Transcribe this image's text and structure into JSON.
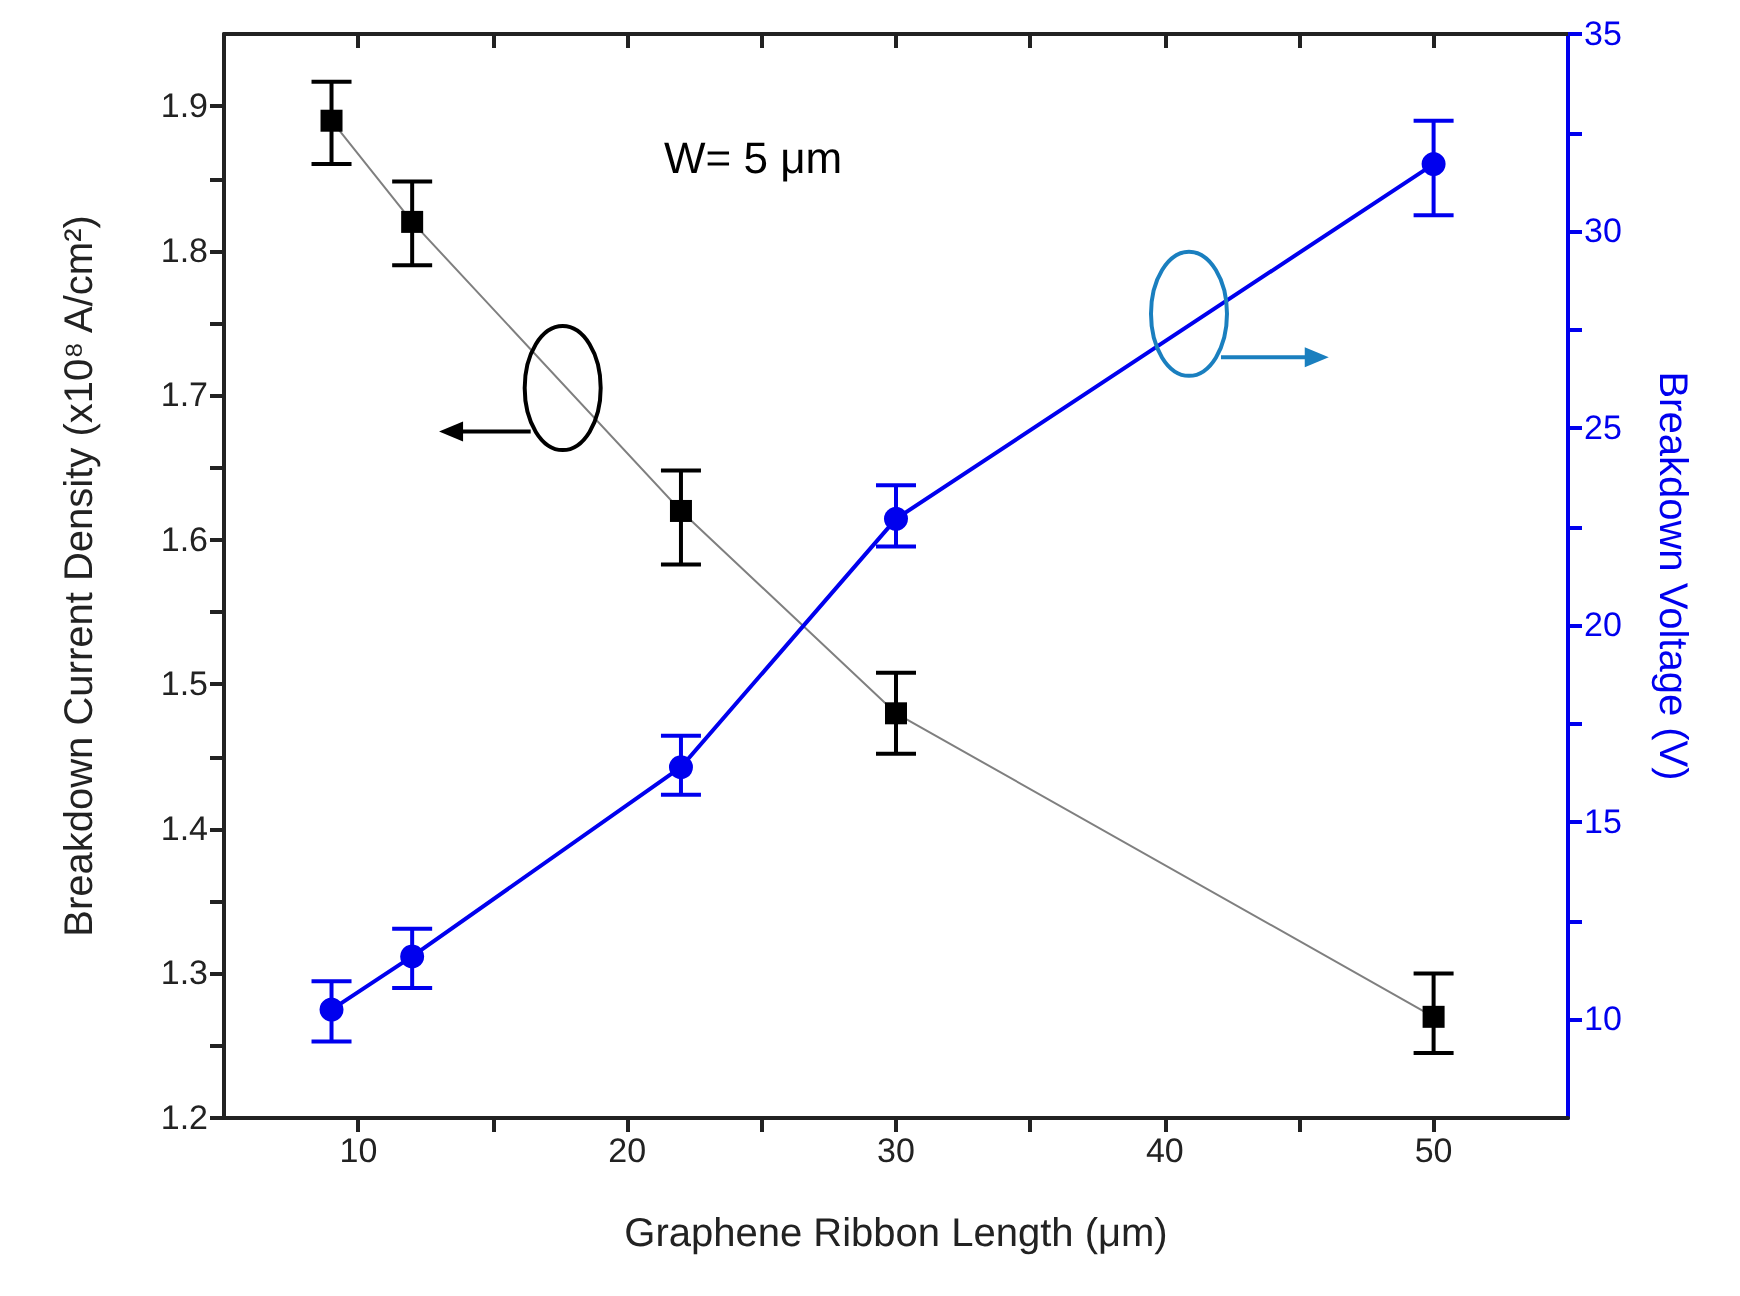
{
  "chart_data": {
    "type": "line",
    "xlabel": "Graphene Ribbon Length (μm)",
    "ylabel": "Breakdown Current Density (x10⁸ A/cm²)",
    "y2label": "Breakdown Voltage (V)",
    "annotations": [
      "W= 5 μm"
    ],
    "x": [
      9,
      12,
      22,
      30,
      50
    ],
    "series": [
      {
        "color": "#000000",
        "marker": "square",
        "values": [
          1.89,
          1.82,
          1.62,
          1.48,
          1.27
        ],
        "errors": [
          [
            1.86,
            1.917
          ],
          [
            1.79,
            1.848
          ],
          [
            1.583,
            1.648
          ],
          [
            1.452,
            1.508
          ],
          [
            1.245,
            1.3
          ]
        ]
      },
      {
        "color": "#0000ee",
        "marker": "circle",
        "axis": "y2",
        "values": [
          10.25,
          11.6,
          16.4,
          22.7,
          31.7
        ],
        "errors": [
          [
            9.44,
            10.97
          ],
          [
            10.8,
            12.3
          ],
          [
            15.7,
            17.2
          ],
          [
            22.0,
            23.55
          ],
          [
            30.4,
            32.8
          ]
        ]
      }
    ],
    "xlim": [
      5,
      55
    ],
    "xticks": [
      10,
      {
        "value": 15,
        "label": null
      },
      20,
      {
        "value": 25,
        "label": null
      },
      30,
      {
        "value": 35,
        "label": null
      },
      40,
      {
        "value": 45,
        "label": null
      },
      50
    ],
    "ylim": [
      1.2,
      1.95
    ],
    "yticks": [
      1.2,
      {
        "value": 1.25,
        "label": null
      },
      1.3,
      {
        "value": 1.35,
        "label": null
      },
      1.4,
      {
        "value": 1.45,
        "label": null
      },
      1.5,
      {
        "value": 1.55,
        "label": null
      },
      1.6,
      {
        "value": 1.65,
        "label": null
      },
      1.7,
      {
        "value": 1.75,
        "label": null
      },
      1.8,
      {
        "value": 1.85,
        "label": null
      },
      1.9
    ],
    "y2lim": [
      7.5,
      35
    ],
    "y2ticks": [
      10,
      {
        "value": 12.5,
        "label": null
      },
      15,
      {
        "value": 17.5,
        "label": null
      },
      20,
      {
        "value": 22.5,
        "label": null
      },
      25,
      {
        "value": 27.5,
        "label": null
      },
      30,
      {
        "value": 32.5,
        "label": null
      },
      35
    ],
    "grid": false
  }
}
